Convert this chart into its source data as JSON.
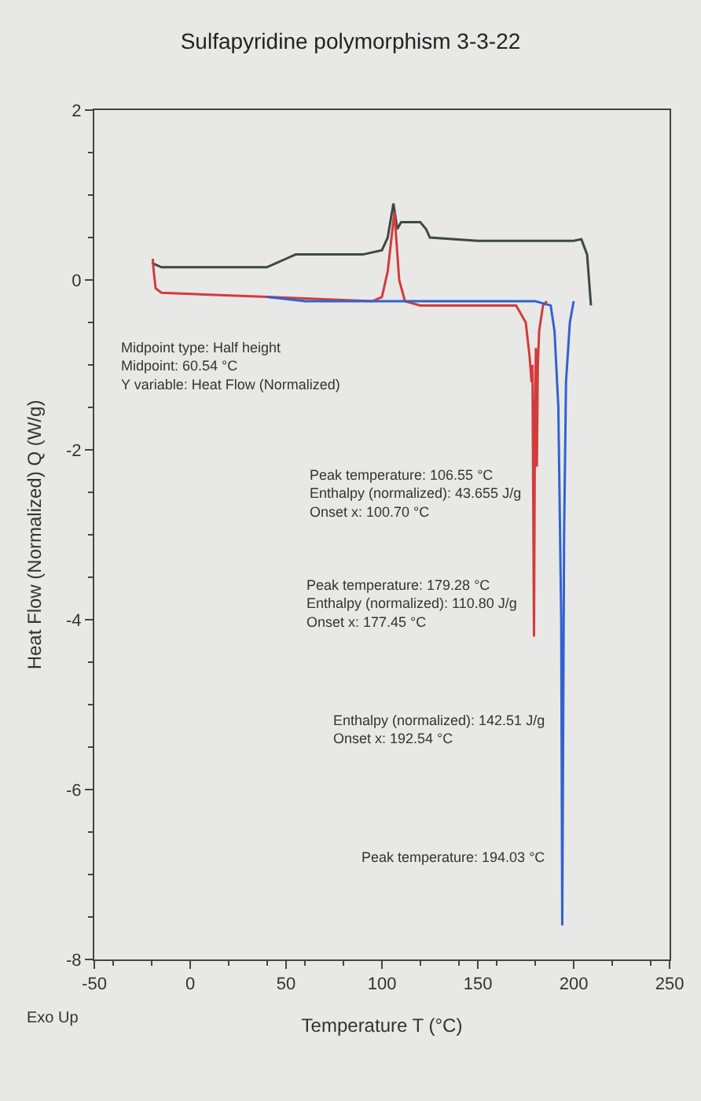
{
  "chart_data": {
    "type": "line",
    "title": "Sulfapyridine polymorphism 3-3-22",
    "xlabel": "Temperature T (°C)",
    "ylabel": "Heat Flow (Normalized) Q (W/g)",
    "xlim": [
      -50,
      250
    ],
    "xticks": [
      -50,
      0,
      50,
      100,
      150,
      200,
      250
    ],
    "ylim": [
      -8,
      2
    ],
    "yticks": [
      -8,
      -6,
      -4,
      -2,
      0,
      2
    ],
    "grid": false,
    "marker": "none",
    "line_style": "solid",
    "series": [
      {
        "color": "#3b4a40",
        "x": [
          -20,
          -15,
          0,
          40,
          45,
          50,
          55,
          90,
          100,
          103,
          106,
          108,
          110,
          120,
          123,
          125,
          150,
          200,
          204,
          207,
          209
        ],
        "values": [
          0.2,
          0.15,
          0.15,
          0.15,
          0.2,
          0.25,
          0.3,
          0.3,
          0.35,
          0.5,
          0.9,
          0.6,
          0.68,
          0.68,
          0.6,
          0.5,
          0.46,
          0.46,
          0.48,
          0.3,
          -0.3
        ]
      },
      {
        "color": "#d23c3c",
        "x": [
          -19.5,
          -19,
          -18,
          -15,
          40,
          95,
          100,
          103,
          106.5,
          109,
          112,
          120,
          170,
          175,
          177,
          178,
          178.5,
          179.3,
          179.8,
          180.3,
          180.8,
          181.3,
          182,
          184,
          186
        ],
        "values": [
          0.25,
          0.1,
          -0.1,
          -0.15,
          -0.2,
          -0.25,
          -0.2,
          0.1,
          0.8,
          0.0,
          -0.25,
          -0.3,
          -0.3,
          -0.5,
          -0.9,
          -1.2,
          -1.0,
          -4.2,
          -1.5,
          -0.8,
          -2.2,
          -1.0,
          -0.6,
          -0.3,
          -0.25
        ]
      },
      {
        "color": "#3262d2",
        "x": [
          40,
          60,
          100,
          180,
          188,
          190,
          192,
          193.5,
          194.03,
          195,
          196,
          198,
          200
        ],
        "values": [
          -0.2,
          -0.25,
          -0.25,
          -0.25,
          -0.3,
          -0.6,
          -1.5,
          -4.0,
          -7.6,
          -3.0,
          -1.2,
          -0.5,
          -0.25
        ]
      }
    ],
    "annotations": [
      "Exo Up",
      "Midpoint type: Half height\nMidpoint: 60.54 °C\nY variable: Heat Flow (Normalized)",
      "Peak temperature: 106.55 °C\nEnthalpy (normalized): 43.655 J/g\nOnset x: 100.70 °C",
      "Peak temperature: 179.28 °C\nEnthalpy (normalized): 110.80 J/g\nOnset x: 177.45 °C",
      "Enthalpy (normalized): 142.51 J/g\nOnset x: 192.54 °C",
      "Peak temperature: 194.03 °C"
    ]
  }
}
